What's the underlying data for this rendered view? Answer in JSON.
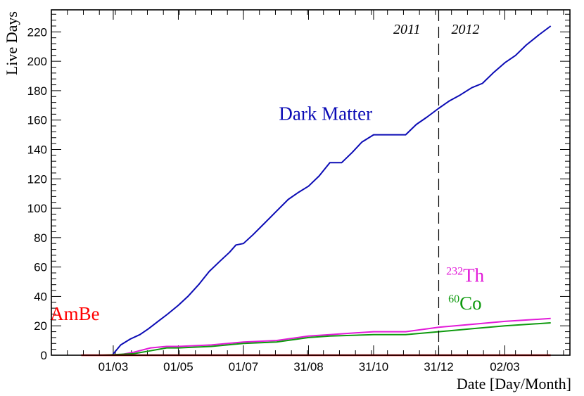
{
  "chart_data": {
    "type": "line",
    "xlabel": "Date [Day/Month]",
    "ylabel": "Live Days",
    "ylim": [
      0,
      235
    ],
    "y_ticks": [
      0,
      20,
      40,
      60,
      80,
      100,
      120,
      140,
      160,
      180,
      200,
      220
    ],
    "xlim": [
      "2011-01-02",
      "2012-05-02"
    ],
    "x_ticks": [
      {
        "date": "2011-03-01",
        "label": "01/03"
      },
      {
        "date": "2011-05-01",
        "label": "01/05"
      },
      {
        "date": "2011-07-01",
        "label": "01/07"
      },
      {
        "date": "2011-08-31",
        "label": "31/08"
      },
      {
        "date": "2011-10-31",
        "label": "31/10"
      },
      {
        "date": "2011-12-31",
        "label": "31/12"
      },
      {
        "date": "2012-03-02",
        "label": "02/03"
      }
    ],
    "year_divider": {
      "date": "2011-12-31",
      "left_label": "2011",
      "right_label": "2012"
    },
    "series": [
      {
        "name": "Dark Matter",
        "color": "#0b0bb5",
        "points": [
          [
            "2011-02-19",
            0
          ],
          [
            "2011-02-28",
            0
          ],
          [
            "2011-03-08",
            7
          ],
          [
            "2011-03-17",
            11
          ],
          [
            "2011-03-26",
            14
          ],
          [
            "2011-04-03",
            18
          ],
          [
            "2011-04-12",
            23
          ],
          [
            "2011-04-21",
            28
          ],
          [
            "2011-05-01",
            34
          ],
          [
            "2011-05-10",
            40
          ],
          [
            "2011-05-20",
            48
          ],
          [
            "2011-05-30",
            57
          ],
          [
            "2011-06-09",
            64
          ],
          [
            "2011-06-18",
            70
          ],
          [
            "2011-06-24",
            75
          ],
          [
            "2011-07-01",
            76
          ],
          [
            "2011-07-10",
            82
          ],
          [
            "2011-07-21",
            90
          ],
          [
            "2011-08-01",
            98
          ],
          [
            "2011-08-12",
            106
          ],
          [
            "2011-08-22",
            111
          ],
          [
            "2011-08-31",
            115
          ],
          [
            "2011-09-10",
            122
          ],
          [
            "2011-09-20",
            131
          ],
          [
            "2011-10-01",
            131
          ],
          [
            "2011-10-11",
            138
          ],
          [
            "2011-10-20",
            145
          ],
          [
            "2011-10-31",
            150
          ],
          [
            "2011-11-30",
            150
          ],
          [
            "2011-12-10",
            157
          ],
          [
            "2011-12-20",
            162
          ],
          [
            "2011-12-31",
            168
          ],
          [
            "2012-01-10",
            173
          ],
          [
            "2012-01-20",
            177
          ],
          [
            "2012-01-31",
            182
          ],
          [
            "2012-02-10",
            185
          ],
          [
            "2012-02-20",
            192
          ],
          [
            "2012-03-02",
            199
          ],
          [
            "2012-03-12",
            204
          ],
          [
            "2012-03-22",
            211
          ],
          [
            "2012-04-03",
            218
          ],
          [
            "2012-04-14",
            224
          ]
        ]
      },
      {
        "name": "232Th",
        "color": "#e21bd8",
        "points": [
          [
            "2011-02-19",
            0
          ],
          [
            "2011-03-05",
            0
          ],
          [
            "2011-03-20",
            2
          ],
          [
            "2011-04-05",
            5
          ],
          [
            "2011-04-20",
            6
          ],
          [
            "2011-05-01",
            6
          ],
          [
            "2011-06-01",
            7
          ],
          [
            "2011-07-01",
            9
          ],
          [
            "2011-08-01",
            10
          ],
          [
            "2011-08-31",
            13
          ],
          [
            "2011-09-20",
            14
          ],
          [
            "2011-10-31",
            16
          ],
          [
            "2011-11-30",
            16
          ],
          [
            "2011-12-31",
            19
          ],
          [
            "2012-01-31",
            21
          ],
          [
            "2012-03-02",
            23
          ],
          [
            "2012-04-14",
            25
          ]
        ]
      },
      {
        "name": "60Co",
        "color": "#0e9a0e",
        "points": [
          [
            "2011-02-19",
            0
          ],
          [
            "2011-03-20",
            1
          ],
          [
            "2011-04-05",
            3
          ],
          [
            "2011-04-20",
            5
          ],
          [
            "2011-05-01",
            5
          ],
          [
            "2011-06-01",
            6
          ],
          [
            "2011-07-01",
            8
          ],
          [
            "2011-08-01",
            9
          ],
          [
            "2011-08-31",
            12
          ],
          [
            "2011-09-20",
            13
          ],
          [
            "2011-10-31",
            14
          ],
          [
            "2011-11-30",
            14
          ],
          [
            "2011-12-31",
            16
          ],
          [
            "2012-01-31",
            18
          ],
          [
            "2012-03-02",
            20
          ],
          [
            "2012-04-14",
            22
          ]
        ]
      },
      {
        "name": "AmBe",
        "color": "#ff0000",
        "points": [
          [
            "2011-01-30",
            0
          ],
          [
            "2012-04-14",
            0
          ]
        ]
      }
    ],
    "annotations": [
      {
        "id": "dm",
        "text": "Dark Matter",
        "color": "#0b0bb5",
        "at": [
          "2011-09-16",
          160
        ]
      },
      {
        "id": "ambe",
        "text": "AmBe",
        "color": "#ff0000",
        "at": [
          "2011-01-24",
          24
        ]
      },
      {
        "id": "th",
        "mass": "232",
        "element": "Th",
        "color": "#e21bd8",
        "at": [
          "2012-01-07",
          50
        ]
      },
      {
        "id": "co",
        "mass": "60",
        "element": "Co",
        "color": "#0e9a0e",
        "at": [
          "2012-01-09",
          31
        ]
      }
    ]
  }
}
